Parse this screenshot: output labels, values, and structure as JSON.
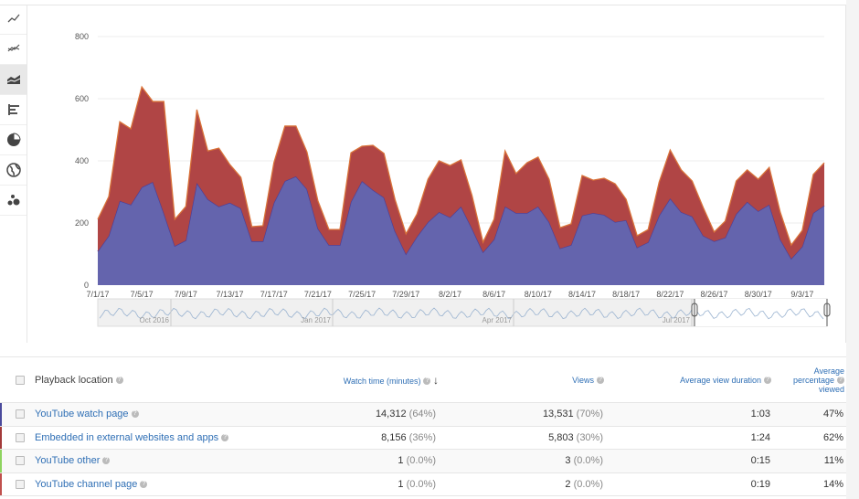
{
  "sidebar": {
    "items": [
      {
        "icon": "line-chart-icon"
      },
      {
        "icon": "multi-line-chart-icon"
      },
      {
        "icon": "stacked-area-chart-icon",
        "active": true
      },
      {
        "icon": "bar-chart-icon"
      },
      {
        "icon": "pie-chart-icon"
      },
      {
        "icon": "globe-map-icon"
      },
      {
        "icon": "bubble-chart-icon"
      }
    ]
  },
  "chart_data": {
    "type": "area",
    "stacked": true,
    "ylim": [
      0,
      800
    ],
    "yticks": [
      "0",
      "200",
      "400",
      "600",
      "800"
    ],
    "grid": true,
    "x": [
      "7/1/17",
      "7/2/17",
      "7/3/17",
      "7/4/17",
      "7/5/17",
      "7/6/17",
      "7/7/17",
      "7/8/17",
      "7/9/17",
      "7/10/17",
      "7/11/17",
      "7/12/17",
      "7/13/17",
      "7/14/17",
      "7/15/17",
      "7/16/17",
      "7/17/17",
      "7/18/17",
      "7/19/17",
      "7/20/17",
      "7/21/17",
      "7/22/17",
      "7/23/17",
      "7/24/17",
      "7/25/17",
      "7/26/17",
      "7/27/17",
      "7/28/17",
      "7/29/17",
      "7/30/17",
      "7/31/17",
      "8/1/17",
      "8/2/17",
      "8/3/17",
      "8/4/17",
      "8/5/17",
      "8/6/17",
      "8/7/17",
      "8/8/17",
      "8/9/17",
      "8/10/17",
      "8/11/17",
      "8/12/17",
      "8/13/17",
      "8/14/17",
      "8/15/17",
      "8/16/17",
      "8/17/17",
      "8/18/17",
      "8/19/17",
      "8/20/17",
      "8/21/17",
      "8/22/17",
      "8/23/17",
      "8/24/17",
      "8/25/17",
      "8/26/17",
      "8/27/17",
      "8/28/17",
      "8/29/17",
      "8/30/17",
      "8/31/17",
      "9/1/17",
      "9/2/17",
      "9/3/17",
      "9/4/17",
      "9/5/17"
    ],
    "xticks": [
      "7/1/17",
      "7/5/17",
      "7/9/17",
      "7/13/17",
      "7/17/17",
      "7/21/17",
      "7/25/17",
      "7/29/17",
      "8/2/17",
      "8/6/17",
      "8/10/17",
      "8/14/17",
      "8/18/17",
      "8/22/17",
      "8/26/17",
      "8/30/17",
      "9/3/17"
    ],
    "series": [
      {
        "name": "YouTube watch page",
        "color": "#6464ad",
        "values": [
          109,
          159,
          271,
          259,
          315,
          332,
          232,
          126,
          144,
          329,
          276,
          253,
          265,
          247,
          141,
          141,
          265,
          335,
          350,
          309,
          182,
          129,
          129,
          268,
          335,
          306,
          282,
          174,
          100,
          156,
          203,
          235,
          218,
          253,
          182,
          106,
          147,
          253,
          232,
          232,
          253,
          203,
          118,
          129,
          224,
          232,
          226,
          203,
          209,
          121,
          138,
          224,
          279,
          235,
          221,
          159,
          141,
          153,
          229,
          268,
          238,
          259,
          147,
          85,
          124,
          232,
          256
        ]
      },
      {
        "name": "Embedded in external websites and apps",
        "color": "#b04545",
        "values": [
          103,
          126,
          255,
          244,
          323,
          259,
          359,
          86,
          109,
          236,
          156,
          188,
          123,
          100,
          47,
          50,
          129,
          177,
          162,
          120,
          89,
          50,
          50,
          158,
          112,
          144,
          142,
          102,
          65,
          73,
          138,
          165,
          167,
          150,
          106,
          32,
          65,
          179,
          127,
          162,
          159,
          138,
          67,
          68,
          129,
          106,
          118,
          123,
          67,
          38,
          41,
          108,
          156,
          136,
          114,
          91,
          30,
          53,
          106,
          103,
          103,
          120,
          88,
          44,
          52,
          124,
          138
        ]
      }
    ],
    "navigator": {
      "labels": [
        "Oct 2016",
        "Jan 2017",
        "Apr 2017",
        "Jul 2017"
      ]
    }
  },
  "table": {
    "headers": {
      "location": "Playback location",
      "watch_time": "Watch time (minutes)",
      "views": "Views",
      "avg_duration": "Average view duration",
      "avg_pct_1": "Average",
      "avg_pct_2": "percentage",
      "avg_pct_3": "viewed"
    },
    "rows": [
      {
        "name": "YouTube watch page",
        "color": "#4a4a9c",
        "watch": "14,312",
        "watch_pct": "(64%)",
        "views": "13,531",
        "views_pct": "(70%)",
        "dur": "1:03",
        "pct": "47%"
      },
      {
        "name": "Embedded in external websites and apps",
        "color": "#a33a3a",
        "watch": "8,156",
        "watch_pct": "(36%)",
        "views": "5,803",
        "views_pct": "(30%)",
        "dur": "1:24",
        "pct": "62%"
      },
      {
        "name": "YouTube other",
        "color": "#8fd45f",
        "watch": "1",
        "watch_pct": "(0.0%)",
        "views": "3",
        "views_pct": "(0.0%)",
        "dur": "0:15",
        "pct": "11%"
      },
      {
        "name": "YouTube channel page",
        "color": "#c0504d",
        "watch": "1",
        "watch_pct": "(0.0%)",
        "views": "2",
        "views_pct": "(0.0%)",
        "dur": "0:19",
        "pct": "14%"
      }
    ]
  }
}
